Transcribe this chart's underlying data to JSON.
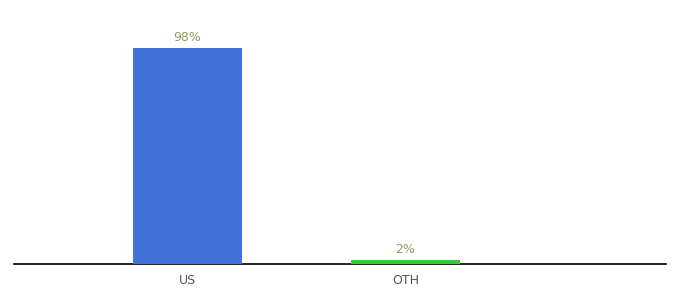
{
  "categories": [
    "US",
    "OTH"
  ],
  "values": [
    98,
    2
  ],
  "bar_colors": [
    "#4472db",
    "#33cc33"
  ],
  "label_color": "#999966",
  "bar_width": 0.5,
  "ylim": [
    0,
    110
  ],
  "background_color": "#ffffff",
  "label_fontsize": 9,
  "tick_fontsize": 9,
  "tick_color": "#555555"
}
